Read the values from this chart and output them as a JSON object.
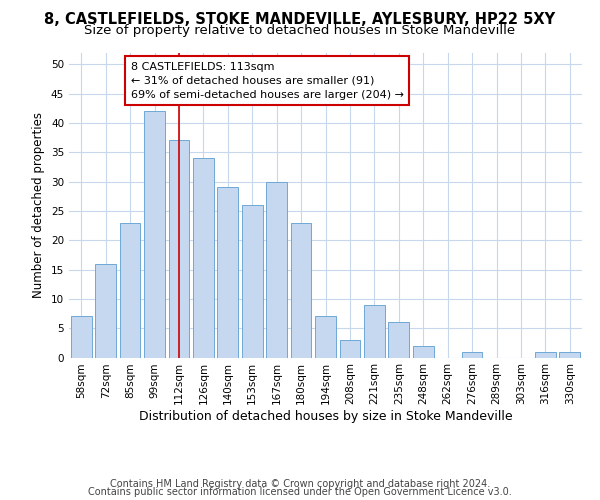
{
  "title_line1": "8, CASTLEFIELDS, STOKE MANDEVILLE, AYLESBURY, HP22 5XY",
  "title_line2": "Size of property relative to detached houses in Stoke Mandeville",
  "xlabel": "Distribution of detached houses by size in Stoke Mandeville",
  "ylabel": "Number of detached properties",
  "categories": [
    "58sqm",
    "72sqm",
    "85sqm",
    "99sqm",
    "112sqm",
    "126sqm",
    "140sqm",
    "153sqm",
    "167sqm",
    "180sqm",
    "194sqm",
    "208sqm",
    "221sqm",
    "235sqm",
    "248sqm",
    "262sqm",
    "276sqm",
    "289sqm",
    "303sqm",
    "316sqm",
    "330sqm"
  ],
  "values": [
    7,
    16,
    23,
    42,
    37,
    34,
    29,
    26,
    30,
    23,
    7,
    3,
    9,
    6,
    2,
    0,
    1,
    0,
    0,
    1,
    1
  ],
  "bar_color": "#C5D8F0",
  "bar_edge_color": "#6FA8D6",
  "highlight_index": 4,
  "highlight_color": "#cc0000",
  "ylim": [
    0,
    52
  ],
  "yticks": [
    0,
    5,
    10,
    15,
    20,
    25,
    30,
    35,
    40,
    45,
    50
  ],
  "annotation_box_text": "8 CASTLEFIELDS: 113sqm\n← 31% of detached houses are smaller (91)\n69% of semi-detached houses are larger (204) →",
  "annotation_box_color": "#cc0000",
  "footer_line1": "Contains HM Land Registry data © Crown copyright and database right 2024.",
  "footer_line2": "Contains public sector information licensed under the Open Government Licence v3.0.",
  "bg_color": "#ffffff",
  "grid_color": "#C8D8EC",
  "title_fontsize": 10.5,
  "subtitle_fontsize": 9.5,
  "tick_fontsize": 7.5,
  "footer_fontsize": 7,
  "ylabel_fontsize": 8.5,
  "xlabel_fontsize": 9,
  "annot_fontsize": 8
}
